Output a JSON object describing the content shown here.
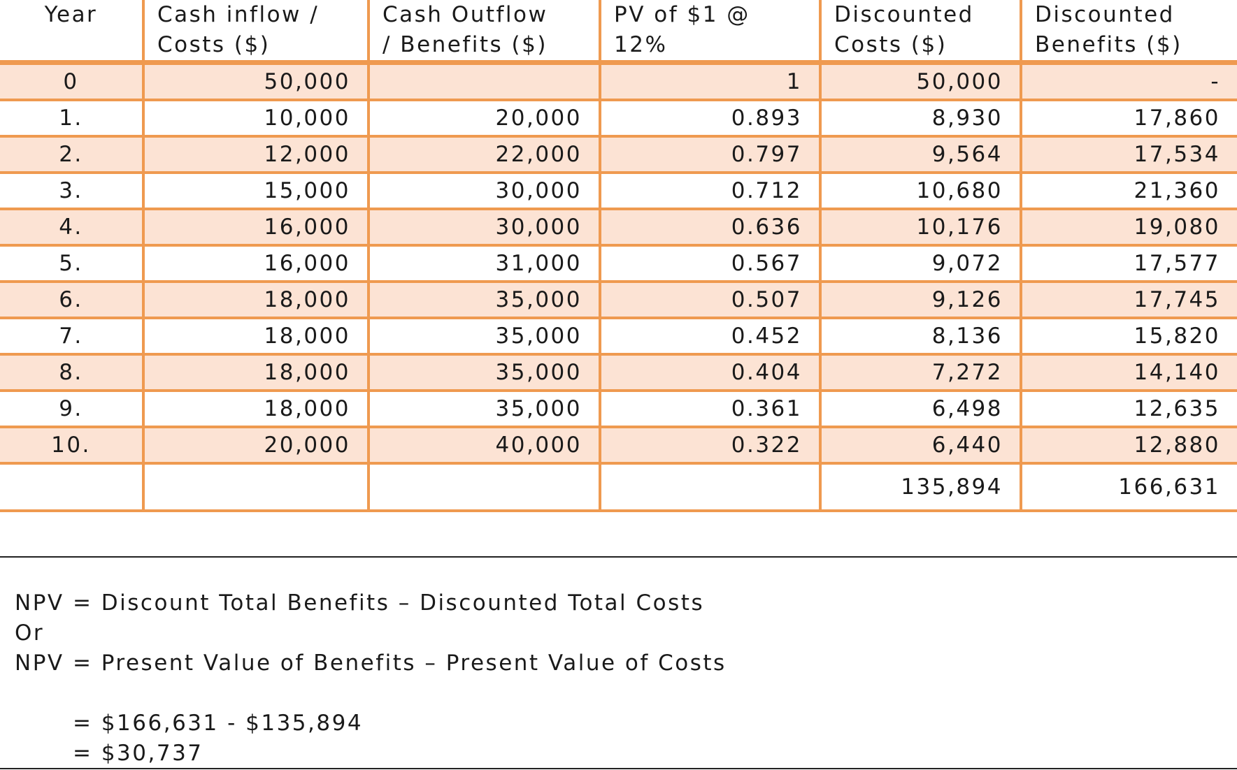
{
  "table": {
    "headers": [
      [
        "Year"
      ],
      [
        "Cash inflow /",
        "Costs  ($)"
      ],
      [
        "Cash Outflow",
        "/ Benefits  ($)"
      ],
      [
        "PV of $1 @",
        "12%"
      ],
      [
        "Discounted",
        "Costs  ($)"
      ],
      [
        "Discounted",
        "Benefits  ($)"
      ]
    ],
    "rows": [
      [
        "0",
        "50,000",
        "",
        "1",
        "50,000",
        "-"
      ],
      [
        "1.",
        "10,000",
        "20,000",
        "0.893",
        "8,930",
        "17,860"
      ],
      [
        "2.",
        "12,000",
        "22,000",
        "0.797",
        "9,564",
        "17,534"
      ],
      [
        "3.",
        "15,000",
        "30,000",
        "0.712",
        "10,680",
        "21,360"
      ],
      [
        "4.",
        "16,000",
        "30,000",
        "0.636",
        "10,176",
        "19,080"
      ],
      [
        "5.",
        "16,000",
        "31,000",
        "0.567",
        "9,072",
        "17,577"
      ],
      [
        "6.",
        "18,000",
        "35,000",
        "0.507",
        "9,126",
        "17,745"
      ],
      [
        "7.",
        "18,000",
        "35,000",
        "0.452",
        "8,136",
        "15,820"
      ],
      [
        "8.",
        "18,000",
        "35,000",
        "0.404",
        "7,272",
        "14,140"
      ],
      [
        "9.",
        "18,000",
        "35,000",
        "0.361",
        "6,498",
        "12,635"
      ],
      [
        "10.",
        "20,000",
        "40,000",
        "0.322",
        "6,440",
        "12,880"
      ]
    ],
    "totals": [
      "",
      "",
      "",
      "",
      "135,894",
      "166,631"
    ]
  },
  "formula": {
    "line1": "NPV = Discount Total Benefits – Discounted Total Costs",
    "line2": "Or",
    "line3": "NPV = Present Value of Benefits – Present Value of Costs",
    "calc1": "= $166,631 - $135,894",
    "calc2": "= $30,737"
  },
  "colors": {
    "grid_line": "#ef9a50",
    "band_fill": "#fce3d4",
    "text": "#1a1a1a"
  }
}
